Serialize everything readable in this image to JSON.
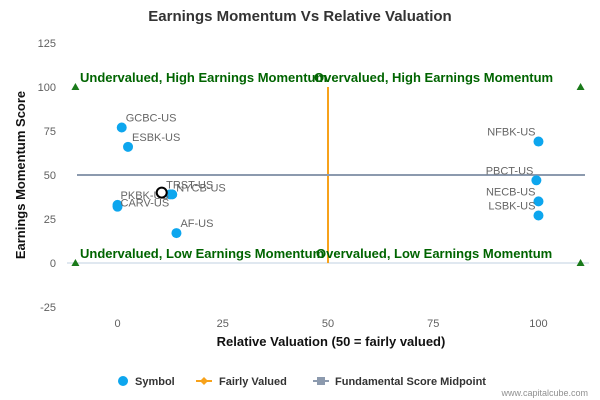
{
  "chart_data": {
    "type": "scatter",
    "title": "Earnings Momentum Vs Relative Valuation",
    "xlabel": "Relative Valuation (50 = fairly valued)",
    "ylabel": "Earnings Momentum Score",
    "xlim": [
      -12,
      112
    ],
    "ylim": [
      -25,
      125
    ],
    "x_ticks": [
      0,
      25,
      50,
      75,
      100
    ],
    "y_ticks": [
      -25,
      0,
      25,
      50,
      75,
      100,
      125
    ],
    "grid": false,
    "legend_position": "bottom",
    "fairly_valued_x": 50,
    "fundamental_midpoint_y": 50,
    "series": [
      {
        "name": "Symbol",
        "color": "#0da6ee",
        "points": [
          {
            "label": "GCBC-US",
            "x": 1,
            "y": 77
          },
          {
            "label": "ESBK-US",
            "x": 2.5,
            "y": 66
          },
          {
            "label": "TRST-US",
            "x": 12.5,
            "y": 39
          },
          {
            "label": "NYCB-US",
            "x": 13,
            "y": 39
          },
          {
            "label": "PKBK-US",
            "x": 0,
            "y": 33
          },
          {
            "label": "CARV-US",
            "x": 0,
            "y": 32
          },
          {
            "label": "AF-US",
            "x": 14,
            "y": 17
          },
          {
            "label": "NFBK-US",
            "x": 100,
            "y": 69
          },
          {
            "label": "PBCT-US",
            "x": 99.5,
            "y": 47
          },
          {
            "label": "NECB-US",
            "x": 100,
            "y": 35
          },
          {
            "label": "LSBK-US",
            "x": 100,
            "y": 27
          }
        ]
      },
      {
        "name": "Fairly Valued",
        "color": "#f7a21b"
      },
      {
        "name": "Fundamental Score Midpoint",
        "color": "#8c9aae"
      }
    ],
    "highlight_point": {
      "x": 10.5,
      "y": 40
    },
    "quadrant_labels": {
      "top_left": "Undervalued, High Earnings Momentum",
      "top_right": "Overvalued, High Earnings Momentum",
      "bottom_left": "Undervalued, Low Earnings Momentum",
      "bottom_right": "Overvalued, Low Earnings Momentum"
    },
    "marker_color": "#1a7a1a",
    "credit": "www.capitalcube.com"
  }
}
